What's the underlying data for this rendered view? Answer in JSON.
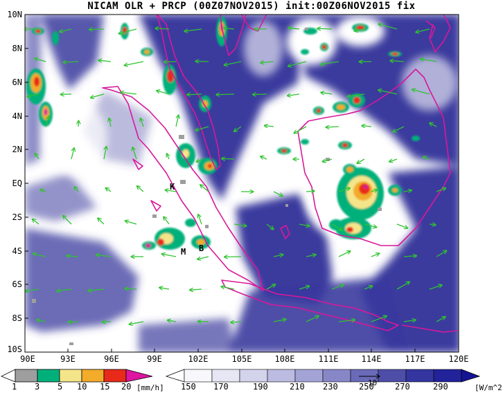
{
  "title": "NICAM OLR + PRCP (00Z07NOV2015) init:00Z06NOV2015 fix",
  "y_axis": {
    "labels": [
      "10N",
      "8N",
      "6N",
      "4N",
      "2N",
      "EQ",
      "2S",
      "4S",
      "6S",
      "8S",
      "10S"
    ]
  },
  "x_axis": {
    "labels": [
      "90E",
      "93E",
      "96E",
      "99E",
      "102E",
      "105E",
      "108E",
      "111E",
      "114E",
      "117E",
      "120E"
    ]
  },
  "stations": [
    {
      "label": "K"
    },
    {
      "label": "M"
    },
    {
      "label": "B"
    }
  ],
  "precip_colorbar": {
    "unit": "[mm/h]",
    "labels": [
      "1",
      "3",
      "5",
      "10",
      "15",
      "20"
    ],
    "colors": [
      "#9e9e9e",
      "#00b07a",
      "#f5e58a",
      "#f2ac2a",
      "#e82a1a",
      "#dd15a0"
    ]
  },
  "olr_colorbar": {
    "unit": "[W/m^2]",
    "labels": [
      "150",
      "170",
      "190",
      "210",
      "230",
      "250",
      "270",
      "290"
    ],
    "colors": [
      "#f7f7fc",
      "#e6e6f4",
      "#d3d3ec",
      "#bcbce2",
      "#a3a3d6",
      "#8787c8",
      "#6a6ab9",
      "#4e4ea8",
      "#3535a0",
      "#22229a",
      "#141494"
    ],
    "vector_ref": "10"
  },
  "colors": {
    "coastline": "#d9189a",
    "wind_vector": "#2fc42f",
    "cloud_fill": "#3a3a9e"
  }
}
